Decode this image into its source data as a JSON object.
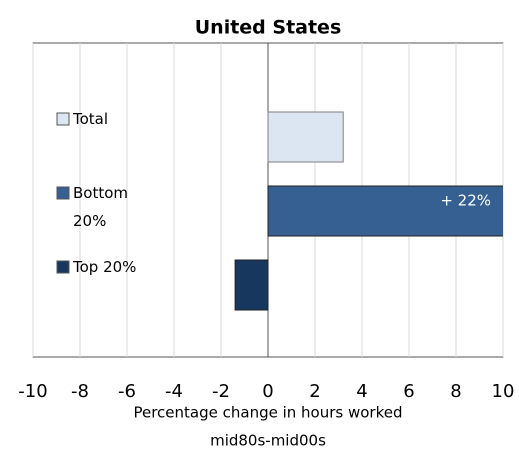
{
  "chart_data": {
    "type": "hbar",
    "title": "United States",
    "categories": [
      "Total",
      "Bottom 20%",
      "Top 20%"
    ],
    "values": [
      3.2,
      22,
      -1.4
    ],
    "value_labels": [
      null,
      "+ 22%",
      null
    ],
    "colors": [
      "#dce6f2",
      "#366092",
      "#17375e"
    ],
    "xlim": [
      -10,
      10
    ],
    "xticks": [
      -10,
      -8,
      -6,
      -4,
      -2,
      0,
      2,
      4,
      6,
      8,
      10
    ],
    "xlabel": [
      "Percentage change in hours worked",
      "mid80s-mid00s"
    ],
    "grid": true
  }
}
